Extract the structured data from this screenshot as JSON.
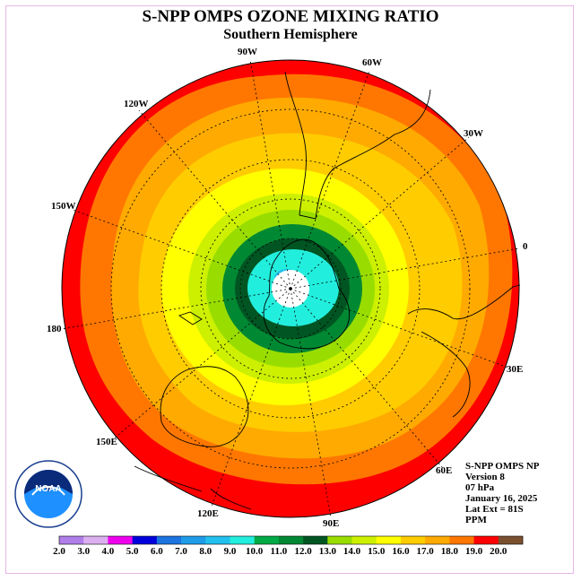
{
  "title": "S-NPP OMPS OZONE MIXING RATIO",
  "subtitle": "Southern Hemisphere",
  "longitude_labels": [
    "90W",
    "60W",
    "30W",
    "0",
    "30E",
    "60E",
    "90E",
    "120E",
    "150E",
    "180",
    "150W",
    "120W"
  ],
  "info": {
    "product": "S-NPP OMPS NP",
    "version": "Version 8",
    "level": "07 hPa",
    "date": "January 16, 2025",
    "lat_ext": "Lat Ext = 81S",
    "units": "PPM"
  },
  "logo": "NOAA",
  "legend": {
    "tick_labels": [
      "2.0",
      "3.0",
      "4.0",
      "5.0",
      "6.0",
      "7.0",
      "8.0",
      "9.0",
      "10.0",
      "11.0",
      "12.0",
      "13.0",
      "14.0",
      "15.0",
      "16.0",
      "17.0",
      "18.0",
      "19.0",
      "20.0"
    ],
    "colors": [
      "#b07ee8",
      "#dcb0f0",
      "#ee00ee",
      "#0000dd",
      "#1c74e0",
      "#1e9ce8",
      "#22c0ee",
      "#22eedd",
      "#00aa44",
      "#008833",
      "#005522",
      "#99dd00",
      "#ccf000",
      "#ffff00",
      "#ffcc00",
      "#ffaa00",
      "#ff7700",
      "#ff0000",
      "#7b5030"
    ]
  }
}
